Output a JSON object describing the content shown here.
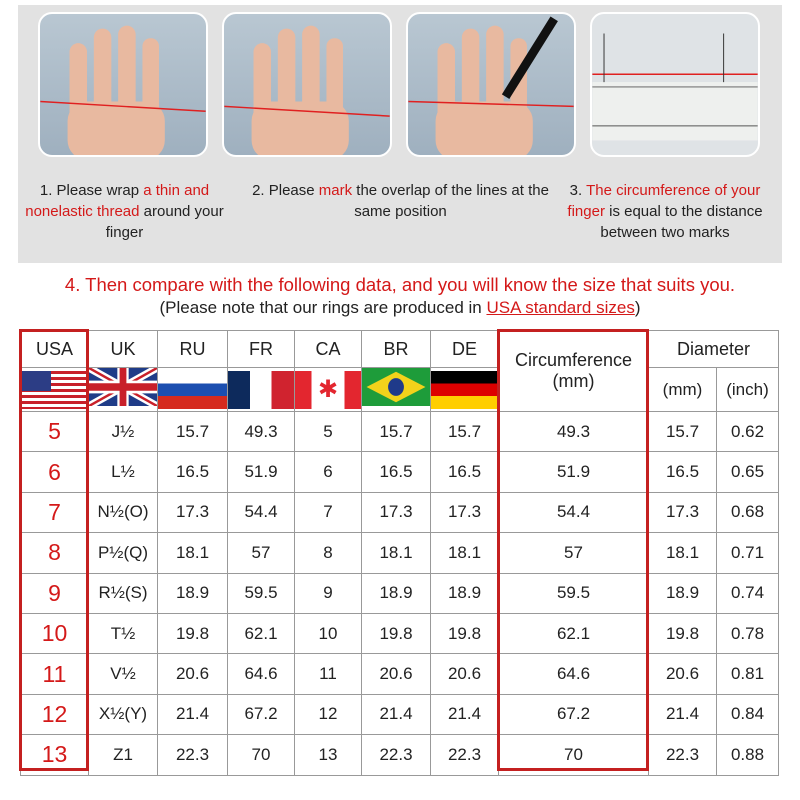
{
  "steps": [
    {
      "pre": "1. Please wrap ",
      "red": "a thin and nonelastic thread",
      "post": " around your finger"
    },
    {
      "pre": "2. Please ",
      "red": "mark",
      "post": " the overlap of the lines at the same position"
    },
    {
      "pre": "3. ",
      "red": "The circumference of your finger",
      "post": " is equal to the distance between two marks"
    }
  ],
  "heading": "4. Then compare with the following data, and you will know the size that suits you.",
  "note": {
    "pre": "(Please note that our rings are produced in ",
    "link": "USA standard sizes",
    "post": ")"
  },
  "table": {
    "headers": [
      "USA",
      "UK",
      "RU",
      "FR",
      "CA",
      "BR",
      "DE",
      "Circumference",
      "(mm)",
      "Diameter",
      "(mm)",
      "(inch)"
    ],
    "flags": [
      "us-flag",
      "uk-flag",
      "russia-flag",
      "france-flag",
      "canada-flag",
      "brazil-flag",
      "germany-flag"
    ],
    "rows": [
      [
        "5",
        "J½",
        "15.7",
        "49.3",
        "5",
        "15.7",
        "15.7",
        "49.3",
        "15.7",
        "0.62"
      ],
      [
        "6",
        "L½",
        "16.5",
        "51.9",
        "6",
        "16.5",
        "16.5",
        "51.9",
        "16.5",
        "0.65"
      ],
      [
        "7",
        "N½(O)",
        "17.3",
        "54.4",
        "7",
        "17.3",
        "17.3",
        "54.4",
        "17.3",
        "0.68"
      ],
      [
        "8",
        "P½(Q)",
        "18.1",
        "57",
        "8",
        "18.1",
        "18.1",
        "57",
        "18.1",
        "0.71"
      ],
      [
        "9",
        "R½(S)",
        "18.9",
        "59.5",
        "9",
        "18.9",
        "18.9",
        "59.5",
        "18.9",
        "0.74"
      ],
      [
        "10",
        "T½",
        "19.8",
        "62.1",
        "10",
        "19.8",
        "19.8",
        "62.1",
        "19.8",
        "0.78"
      ],
      [
        "11",
        "V½",
        "20.6",
        "64.6",
        "11",
        "20.6",
        "20.6",
        "64.6",
        "20.6",
        "0.81"
      ],
      [
        "12",
        "X½(Y)",
        "21.4",
        "67.2",
        "12",
        "21.4",
        "21.4",
        "67.2",
        "21.4",
        "0.84"
      ],
      [
        "13",
        "Z1",
        "22.3",
        "70",
        "13",
        "22.3",
        "22.3",
        "70",
        "22.3",
        "0.88"
      ]
    ]
  },
  "colors": {
    "accent": "#d41919",
    "panel": "#e2e2e2"
  }
}
